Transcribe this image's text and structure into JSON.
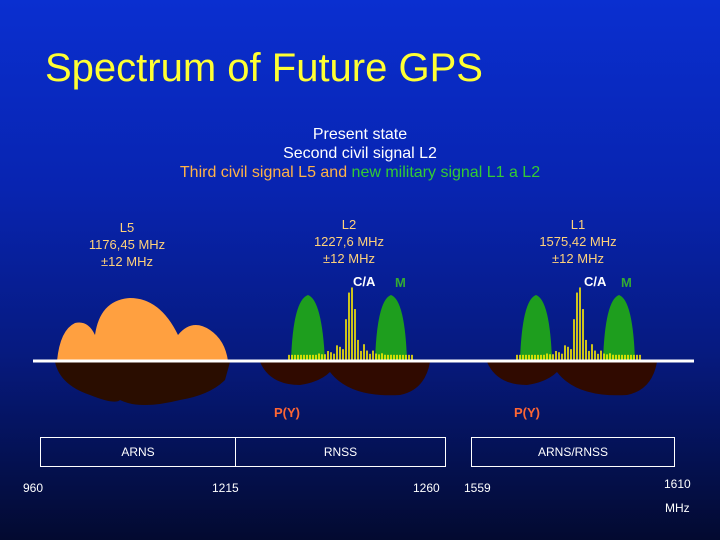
{
  "title": "Spectrum of Future GPS",
  "subtitle": {
    "line1": "Present state",
    "line2": "Second civil signal L2",
    "line3_part1": "Third civil signal L5 and ",
    "line3_part2": "new military signal L1 a L2"
  },
  "bands": {
    "l5": {
      "name": "L5",
      "freq": "1176,45 MHz",
      "width": "±12 MHz"
    },
    "l2": {
      "name": "L2",
      "freq": "1227,6 MHz",
      "width": "±12 MHz",
      "ca": "C/A",
      "m": "M",
      "py": "P(Y)"
    },
    "l1": {
      "name": "L1",
      "freq": "1575,42 MHz",
      "width": "±12 MHz",
      "ca": "C/A",
      "m": "M",
      "py": "P(Y)"
    }
  },
  "allocations": {
    "arns": "ARNS",
    "rnss": "RNSS",
    "arns_rnss": "ARNS/RNSS"
  },
  "axis": {
    "t960": "960",
    "t1215": "1215",
    "t1260": "1260",
    "t1559": "1559",
    "t1610": "1610",
    "unit": "MHz"
  },
  "colors": {
    "title": "#ffff33",
    "l5_signal": "#ffa040",
    "military": "#1e9e1e",
    "ca_spikes": "#ffee00",
    "py_shadow": "#3a0a00"
  }
}
